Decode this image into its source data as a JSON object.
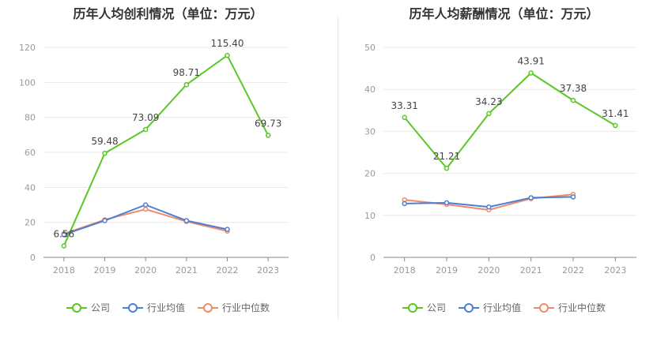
{
  "colors": {
    "company": "#5ac726",
    "industry_avg": "#4b7fd6",
    "industry_median": "#f08a68",
    "grid": "#e8e8e8",
    "axis": "#888888"
  },
  "chart_data": [
    {
      "type": "line",
      "title": "历年人均创利情况（单位：万元）",
      "categories": [
        "2018",
        "2019",
        "2020",
        "2021",
        "2022",
        "2023"
      ],
      "ylim": [
        0,
        120
      ],
      "yticks": [
        0,
        20,
        40,
        60,
        80,
        100,
        120
      ],
      "grid": true,
      "legend_position": "bottom",
      "series": [
        {
          "name": "公司",
          "key": "company",
          "values": [
            6.56,
            59.48,
            73.09,
            98.71,
            115.4,
            69.73
          ],
          "labels": [
            "6.56",
            "59.48",
            "73.09",
            "98.71",
            "115.40",
            "69.73"
          ]
        },
        {
          "name": "行业均值",
          "key": "industry_avg",
          "values": [
            13,
            21,
            30,
            21,
            16,
            null
          ]
        },
        {
          "name": "行业中位数",
          "key": "industry_median",
          "values": [
            13.5,
            21.5,
            27.5,
            20.5,
            15,
            null
          ]
        }
      ]
    },
    {
      "type": "line",
      "title": "历年人均薪酬情况（单位：万元）",
      "categories": [
        "2018",
        "2019",
        "2020",
        "2021",
        "2022",
        "2023"
      ],
      "ylim": [
        0,
        50
      ],
      "yticks": [
        0,
        10,
        20,
        30,
        40,
        50
      ],
      "grid": true,
      "legend_position": "bottom",
      "series": [
        {
          "name": "公司",
          "key": "company",
          "values": [
            33.31,
            21.21,
            34.23,
            43.91,
            37.38,
            31.41
          ],
          "labels": [
            "33.31",
            "21.21",
            "34.23",
            "43.91",
            "37.38",
            "31.41"
          ]
        },
        {
          "name": "行业均值",
          "key": "industry_avg",
          "values": [
            12.8,
            13,
            12,
            14.2,
            14.4,
            null
          ]
        },
        {
          "name": "行业中位数",
          "key": "industry_median",
          "values": [
            13.7,
            12.6,
            11.3,
            14,
            15,
            null
          ]
        }
      ]
    }
  ]
}
